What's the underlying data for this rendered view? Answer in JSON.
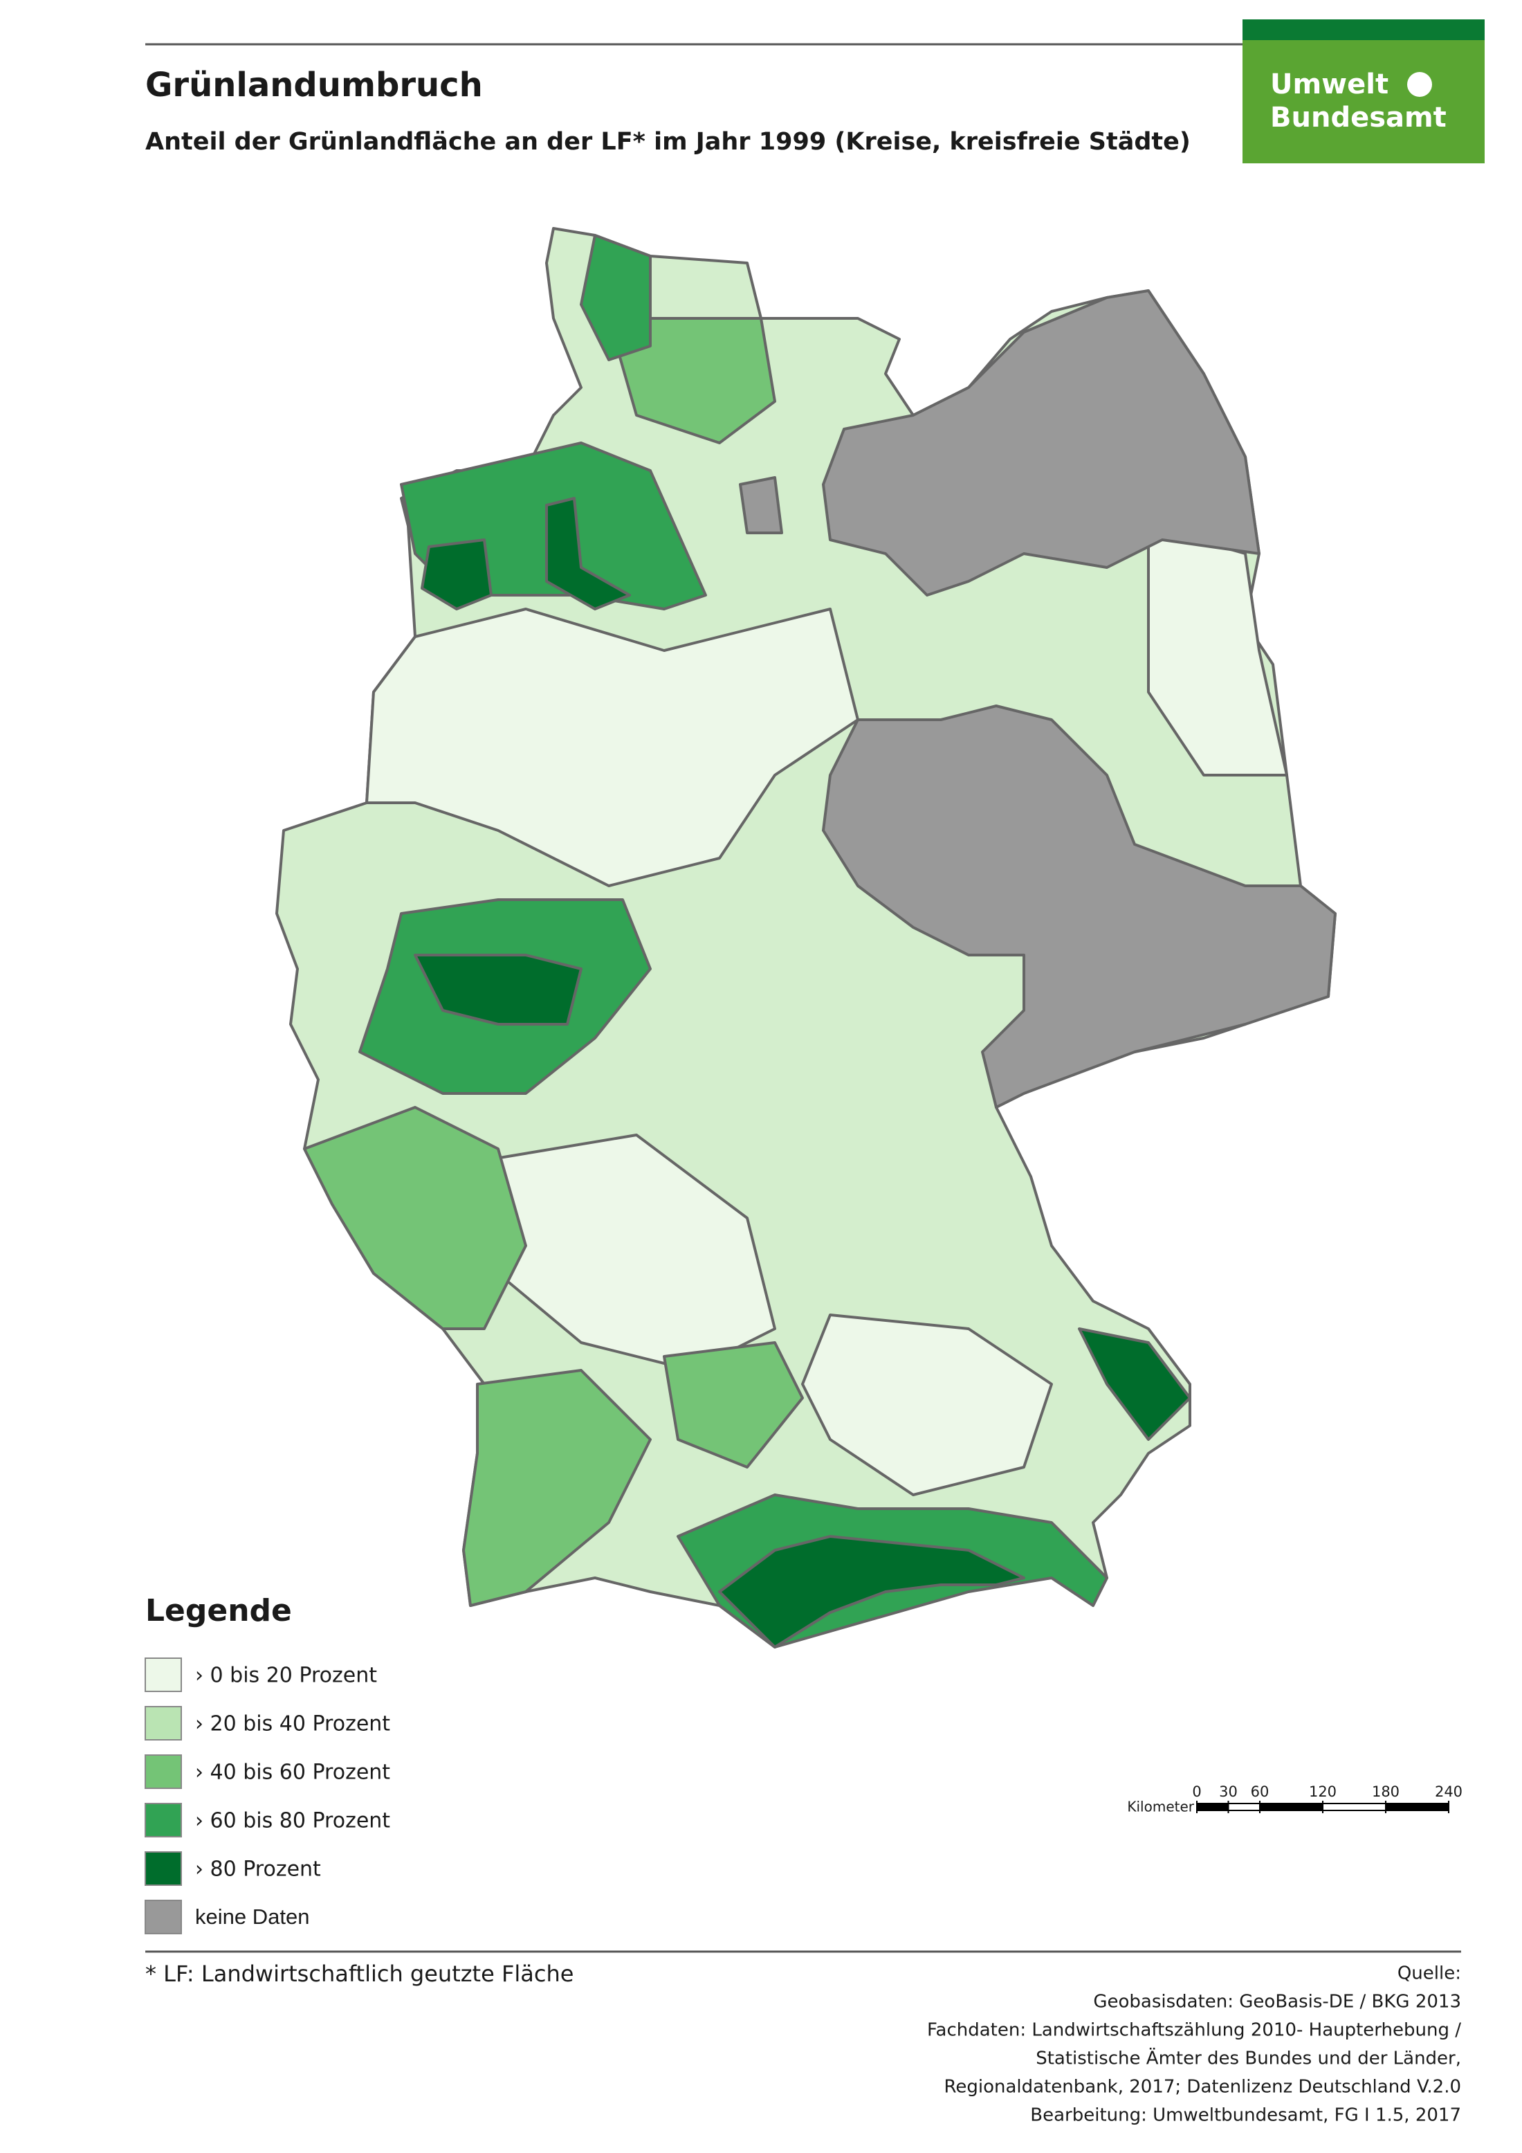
{
  "header": {
    "title": "Grünlandumbruch",
    "subtitle": "Anteil der Grünlandfläche an der LF* im Jahr 1999 (Kreise, kreisfreie Städte)"
  },
  "logo": {
    "line1": "Umwelt",
    "line2": "Bundesamt"
  },
  "legend": {
    "title": "Legende",
    "items": [
      {
        "label": "› 0 bis 20 Prozent",
        "color": "#edf8e9"
      },
      {
        "label": "› 20 bis 40 Prozent",
        "color": "#bae4b3"
      },
      {
        "label": "› 40 bis 60 Prozent",
        "color": "#74c476"
      },
      {
        "label": "› 60 bis 80 Prozent",
        "color": "#31a354"
      },
      {
        "label": "› 80 Prozent",
        "color": "#006d2c"
      },
      {
        "label": "keine Daten",
        "color": "#999999"
      }
    ]
  },
  "scale": {
    "unit": "Kilometer",
    "ticks": [
      0,
      30,
      60,
      120,
      180,
      240
    ]
  },
  "footnote": "* LF: Landwirtschaftlich geutzte Fläche",
  "source": [
    "Quelle:",
    "Geobasisdaten: GeoBasis-DE / BKG 2013",
    "Fachdaten: Landwirtschaftszählung 2010- Haupterhebung /",
    "Statistische Ämter des Bundes und der Länder,",
    "Regionaldatenbank, 2017; Datenlizenz Deutschland V.2.0",
    "Bearbeitung: Umweltbundesamt, FG I 1.5, 2017"
  ]
}
